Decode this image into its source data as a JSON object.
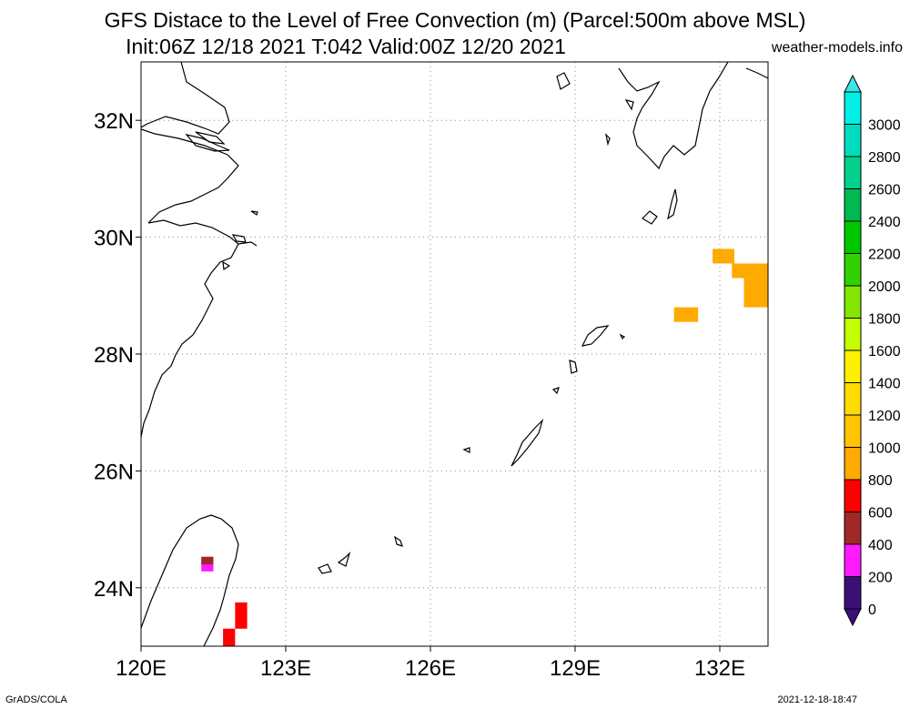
{
  "title": {
    "line1": "GFS Distace to the Level of Free Convection (m) (Parcel:500m above MSL)",
    "line2": "Init:06Z 12/18 2021 T:042 Valid:00Z 12/20 2021",
    "site": "weather-models.info"
  },
  "map": {
    "lon_range": [
      120,
      133
    ],
    "lat_range": [
      23,
      33
    ],
    "lat_ticks": [
      {
        "value": 24,
        "label": "24N"
      },
      {
        "value": 26,
        "label": "26N"
      },
      {
        "value": 28,
        "label": "28N"
      },
      {
        "value": 30,
        "label": "30N"
      },
      {
        "value": 32,
        "label": "32N"
      }
    ],
    "lon_ticks": [
      {
        "value": 120,
        "label": "120E"
      },
      {
        "value": 123,
        "label": "123E"
      },
      {
        "value": 126,
        "label": "126E"
      },
      {
        "value": 129,
        "label": "129E"
      },
      {
        "value": 132,
        "label": "132E"
      }
    ],
    "grid": "dotted",
    "coastline_color": "#000000"
  },
  "colorbar": {
    "labels": [
      "0",
      "200",
      "400",
      "600",
      "800",
      "1000",
      "1200",
      "1400",
      "1600",
      "1800",
      "2000",
      "2200",
      "2400",
      "2600",
      "2800",
      "3000"
    ],
    "colors": [
      "#3c0f78",
      "#ff1aff",
      "#a02828",
      "#ff0000",
      "#ffaa00",
      "#ffc300",
      "#ffdc00",
      "#fff000",
      "#c3ff00",
      "#82e600",
      "#32d200",
      "#00c800",
      "#00b950",
      "#00d28c",
      "#00dcbe",
      "#00f0e6"
    ],
    "under_color": "#3c0f78",
    "over_color": "#3ce6e6"
  },
  "data_cells": [
    {
      "lon0": 131.85,
      "lon1": 132.3,
      "lat0": 29.55,
      "lat1": 29.8,
      "color": "#ffaa00"
    },
    {
      "lon0": 132.25,
      "lon1": 133.0,
      "lat0": 29.3,
      "lat1": 29.55,
      "color": "#ffaa00"
    },
    {
      "lon0": 132.5,
      "lon1": 133.0,
      "lat0": 28.8,
      "lat1": 29.3,
      "color": "#ffaa00"
    },
    {
      "lon0": 131.05,
      "lon1": 131.55,
      "lat0": 28.55,
      "lat1": 28.8,
      "color": "#ffaa00"
    },
    {
      "lon0": 121.25,
      "lon1": 121.5,
      "lat0": 24.28,
      "lat1": 24.53,
      "color": "#ff1aff"
    },
    {
      "lon0": 121.25,
      "lon1": 121.5,
      "lat0": 24.4,
      "lat1": 24.53,
      "color": "#a02828"
    },
    {
      "lon0": 121.95,
      "lon1": 122.2,
      "lat0": 23.3,
      "lat1": 23.75,
      "color": "#ff0000"
    },
    {
      "lon0": 121.7,
      "lon1": 121.95,
      "lat0": 23.0,
      "lat1": 23.3,
      "color": "#ff0000"
    }
  ],
  "footer": {
    "left": "GrADS/COLA",
    "right": "2021-12-18-18:47"
  }
}
